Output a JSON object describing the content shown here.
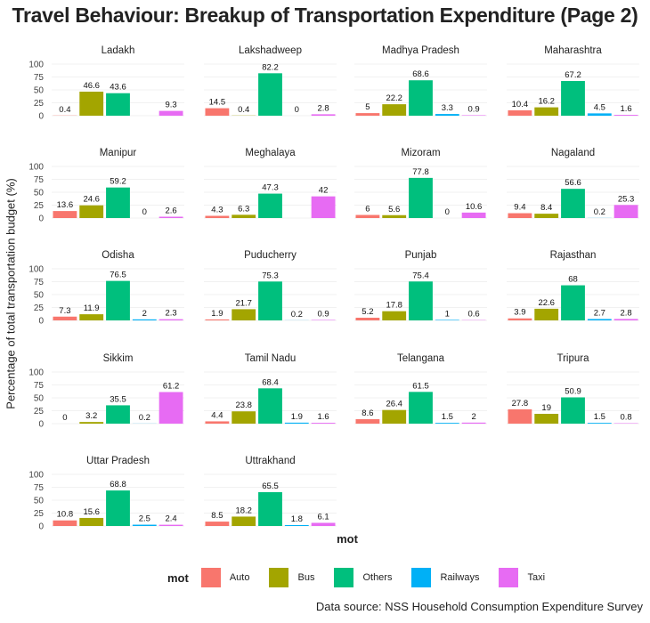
{
  "chart_data": {
    "type": "bar",
    "title": "Travel Behaviour: Breakup of Transportation Expenditure (Page 2)",
    "xlabel": "mot",
    "ylabel": "Percentage of total transportation budget (%)",
    "ylim": [
      0,
      100
    ],
    "yticks": [
      0,
      25,
      50,
      75,
      100
    ],
    "categories": [
      "Auto",
      "Bus",
      "Others",
      "Railways",
      "Taxi"
    ],
    "colors": {
      "Auto": "#F8766D",
      "Bus": "#A3A500",
      "Others": "#00BF7D",
      "Railways": "#00B0F6",
      "Taxi": "#E76BF3"
    },
    "legend": {
      "title": "mot",
      "position": "bottom",
      "entries": [
        "Auto",
        "Bus",
        "Others",
        "Railways",
        "Taxi"
      ]
    },
    "caption": "Data source: NSS Household Consumption Expenditure Survey",
    "facets": [
      {
        "name": "Ladakh",
        "values": [
          0.4,
          46.6,
          43.6,
          null,
          9.3
        ]
      },
      {
        "name": "Lakshadweep",
        "values": [
          14.5,
          0.4,
          82.2,
          0,
          2.8
        ]
      },
      {
        "name": "Madhya Pradesh",
        "values": [
          5,
          22.2,
          68.6,
          3.3,
          0.9
        ]
      },
      {
        "name": "Maharashtra",
        "values": [
          10.4,
          16.2,
          67.2,
          4.5,
          1.6
        ]
      },
      {
        "name": "Manipur",
        "values": [
          13.6,
          24.6,
          59.2,
          0,
          2.6
        ]
      },
      {
        "name": "Meghalaya",
        "values": [
          4.3,
          6.3,
          47.3,
          null,
          42
        ]
      },
      {
        "name": "Mizoram",
        "values": [
          6,
          5.6,
          77.8,
          0,
          10.6
        ]
      },
      {
        "name": "Nagaland",
        "values": [
          9.4,
          8.4,
          56.6,
          0.2,
          25.3
        ]
      },
      {
        "name": "Odisha",
        "values": [
          7.3,
          11.9,
          76.5,
          2,
          2.3
        ]
      },
      {
        "name": "Puducherry",
        "values": [
          1.9,
          21.7,
          75.3,
          0.2,
          0.9
        ]
      },
      {
        "name": "Punjab",
        "values": [
          5.2,
          17.8,
          75.4,
          1,
          0.6
        ]
      },
      {
        "name": "Rajasthan",
        "values": [
          3.9,
          22.6,
          68,
          2.7,
          2.8
        ]
      },
      {
        "name": "Sikkim",
        "values": [
          0,
          3.2,
          35.5,
          0.2,
          61.2
        ]
      },
      {
        "name": "Tamil Nadu",
        "values": [
          4.4,
          23.8,
          68.4,
          1.9,
          1.6
        ]
      },
      {
        "name": "Telangana",
        "values": [
          8.6,
          26.4,
          61.5,
          1.5,
          2
        ]
      },
      {
        "name": "Tripura",
        "values": [
          27.8,
          19,
          50.9,
          1.5,
          0.8
        ]
      },
      {
        "name": "Uttar Pradesh",
        "values": [
          10.8,
          15.6,
          68.8,
          2.5,
          2.4
        ]
      },
      {
        "name": "Uttrakhand",
        "values": [
          8.5,
          18.2,
          65.5,
          1.8,
          6.1
        ]
      }
    ]
  }
}
